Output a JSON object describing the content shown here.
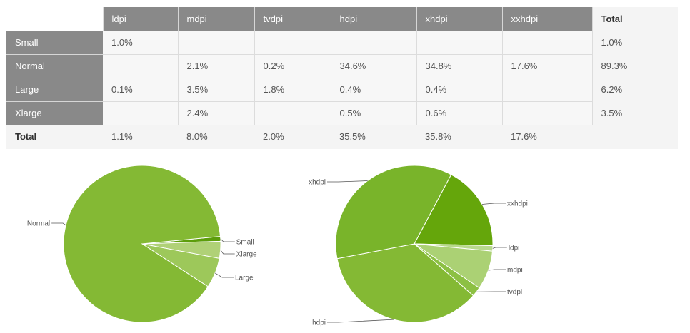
{
  "table": {
    "columns": [
      "ldpi",
      "mdpi",
      "tvdpi",
      "hdpi",
      "xhdpi",
      "xxhdpi"
    ],
    "total_label": "Total",
    "rows": [
      {
        "label": "Small",
        "cells": [
          "1.0%",
          "",
          "",
          "",
          "",
          ""
        ],
        "total": "1.0%"
      },
      {
        "label": "Normal",
        "cells": [
          "",
          "2.1%",
          "0.2%",
          "34.6%",
          "34.8%",
          "17.6%"
        ],
        "total": "89.3%"
      },
      {
        "label": "Large",
        "cells": [
          "0.1%",
          "3.5%",
          "1.8%",
          "0.4%",
          "0.4%",
          ""
        ],
        "total": "6.2%"
      },
      {
        "label": "Xlarge",
        "cells": [
          "",
          "2.4%",
          "",
          "0.5%",
          "0.6%",
          ""
        ],
        "total": "3.5%"
      }
    ],
    "totals": [
      "1.1%",
      "8.0%",
      "2.0%",
      "35.5%",
      "35.8%",
      "17.6%"
    ]
  },
  "chart_data": [
    {
      "type": "pie",
      "slices": [
        {
          "label": "Small",
          "value": 1.0,
          "color": "#5c9d0b"
        },
        {
          "label": "Xlarge",
          "value": 3.5,
          "color": "#b0d177"
        },
        {
          "label": "Large",
          "value": 6.2,
          "color": "#9dc85a"
        },
        {
          "label": "Normal",
          "value": 89.3,
          "color": "#84b934"
        }
      ]
    },
    {
      "type": "pie",
      "slices": [
        {
          "label": "xxhdpi",
          "value": 17.6,
          "color": "#65a60b"
        },
        {
          "label": "ldpi",
          "value": 1.1,
          "color": "#b8d98c"
        },
        {
          "label": "mdpi",
          "value": 8.0,
          "color": "#abd174"
        },
        {
          "label": "tvdpi",
          "value": 2.0,
          "color": "#8cc043"
        },
        {
          "label": "hdpi",
          "value": 35.5,
          "color": "#84b934"
        },
        {
          "label": "xhdpi",
          "value": 35.8,
          "color": "#79b42a"
        }
      ]
    }
  ]
}
